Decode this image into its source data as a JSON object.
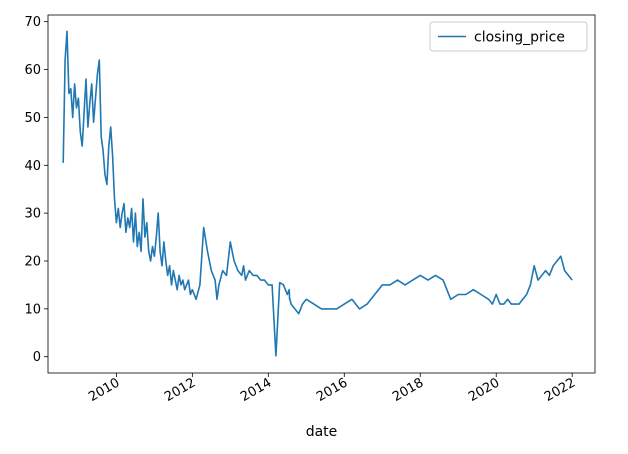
{
  "chart_data": {
    "type": "line",
    "title": "",
    "xlabel": "date",
    "ylabel": "",
    "xlim": [
      2008.2,
      2022.6
    ],
    "ylim": [
      -3.4,
      71.4
    ],
    "x_ticks": [
      2010,
      2012,
      2014,
      2016,
      2018,
      2020,
      2022
    ],
    "y_ticks": [
      0,
      10,
      20,
      30,
      40,
      50,
      60,
      70
    ],
    "grid": false,
    "legend": {
      "position": "upper right",
      "entries": [
        "closing_price"
      ]
    },
    "series": [
      {
        "name": "closing_price",
        "color": "#1f77b4",
        "x": [
          2008.6,
          2008.65,
          2008.7,
          2008.75,
          2008.8,
          2008.85,
          2008.9,
          2008.95,
          2009.0,
          2009.05,
          2009.1,
          2009.15,
          2009.2,
          2009.25,
          2009.3,
          2009.35,
          2009.4,
          2009.45,
          2009.5,
          2009.55,
          2009.6,
          2009.65,
          2009.7,
          2009.75,
          2009.8,
          2009.85,
          2009.9,
          2009.95,
          2010.0,
          2010.05,
          2010.1,
          2010.15,
          2010.2,
          2010.25,
          2010.3,
          2010.35,
          2010.4,
          2010.45,
          2010.5,
          2010.55,
          2010.6,
          2010.65,
          2010.7,
          2010.75,
          2010.8,
          2010.85,
          2010.9,
          2010.95,
          2011.0,
          2011.05,
          2011.1,
          2011.15,
          2011.2,
          2011.25,
          2011.3,
          2011.35,
          2011.4,
          2011.45,
          2011.5,
          2011.55,
          2011.6,
          2011.65,
          2011.7,
          2011.75,
          2011.8,
          2011.85,
          2011.9,
          2011.95,
          2012.0,
          2012.1,
          2012.2,
          2012.3,
          2012.4,
          2012.5,
          2012.6,
          2012.65,
          2012.7,
          2012.8,
          2012.9,
          2013.0,
          2013.1,
          2013.2,
          2013.3,
          2013.35,
          2013.4,
          2013.5,
          2013.6,
          2013.7,
          2013.8,
          2013.9,
          2014.0,
          2014.1,
          2014.2,
          2014.3,
          2014.4,
          2014.5,
          2014.55,
          2014.56,
          2014.57,
          2014.6,
          2014.7,
          2014.8,
          2014.9,
          2015.0,
          2015.2,
          2015.4,
          2015.5,
          2015.6,
          2015.8,
          2016.0,
          2016.2,
          2016.4,
          2016.6,
          2016.8,
          2016.9,
          2017.0,
          2017.2,
          2017.4,
          2017.6,
          2017.8,
          2018.0,
          2018.2,
          2018.4,
          2018.6,
          2018.8,
          2019.0,
          2019.2,
          2019.4,
          2019.6,
          2019.8,
          2019.9,
          2020.0,
          2020.1,
          2020.2,
          2020.3,
          2020.4,
          2020.5,
          2020.6,
          2020.7,
          2020.8,
          2020.9,
          2021.0,
          2021.1,
          2021.2,
          2021.3,
          2021.4,
          2021.5,
          2021.6,
          2021.7,
          2021.8,
          2021.9,
          2022.0
        ],
        "values": [
          40.5,
          62,
          68,
          55,
          56,
          50,
          57,
          52,
          54,
          47,
          44,
          51,
          58,
          48,
          53,
          57,
          49,
          54,
          59,
          62,
          46,
          43,
          38,
          36,
          44,
          48,
          42,
          33,
          28,
          31,
          27,
          30,
          32,
          26,
          29,
          27,
          31,
          24,
          30,
          23,
          26,
          22,
          33,
          25,
          28,
          22,
          20,
          23,
          21,
          25,
          30,
          22,
          19,
          24,
          20,
          17,
          19,
          15,
          18,
          16,
          14,
          17,
          15,
          16,
          14,
          15,
          16,
          13,
          14,
          12,
          15,
          27,
          22,
          18,
          16,
          12,
          15,
          18,
          17,
          24,
          20,
          18,
          17,
          19,
          16,
          18,
          17,
          17,
          16,
          16,
          15,
          15,
          0.2,
          15.5,
          15,
          13,
          14,
          12,
          12,
          11,
          10,
          9,
          11,
          12,
          11,
          10,
          10,
          10,
          10,
          11,
          12,
          10,
          11,
          13,
          14,
          15,
          15,
          16,
          15,
          16,
          17,
          16,
          17,
          16,
          12,
          13,
          13,
          14,
          13,
          12,
          11,
          13,
          11,
          11,
          12,
          11,
          11,
          11,
          12,
          13,
          15,
          19,
          16,
          17,
          18,
          17,
          19,
          20,
          21,
          18,
          17,
          16
        ]
      }
    ]
  }
}
